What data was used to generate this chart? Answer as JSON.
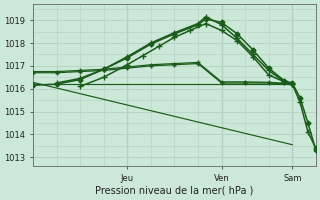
{
  "title": "",
  "xlabel": "Pression niveau de la mer( hPa )",
  "ylabel": "",
  "bg_color": "#cce8d8",
  "plot_bg_color": "#cce8d8",
  "grid_color": "#b8d4c4",
  "line_color": "#1a5c1a",
  "ylim": [
    1012.6,
    1019.7
  ],
  "xlim": [
    0,
    72
  ],
  "yticks": [
    1013,
    1014,
    1015,
    1016,
    1017,
    1018,
    1019
  ],
  "xtick_positions": [
    24,
    48,
    66
  ],
  "xtick_labels": [
    "Jeu",
    "Ven",
    "Sam"
  ],
  "vlines": [
    24,
    48,
    66
  ],
  "lines": [
    {
      "x": [
        0,
        6,
        12,
        18,
        24,
        30,
        36,
        42,
        44,
        48,
        52,
        56,
        60,
        64,
        66,
        68,
        70,
        72
      ],
      "y": [
        1016.15,
        1016.2,
        1016.4,
        1016.85,
        1017.35,
        1017.95,
        1018.4,
        1018.8,
        1019.05,
        1018.9,
        1018.4,
        1017.7,
        1016.9,
        1016.35,
        1016.25,
        1015.6,
        1014.5,
        1013.3
      ],
      "marker": "D",
      "ms": 2.5,
      "lw": 1.1
    },
    {
      "x": [
        6,
        12,
        18,
        24,
        30,
        36,
        42,
        44,
        48,
        52,
        56,
        60,
        64,
        66,
        68,
        70,
        72
      ],
      "y": [
        1016.25,
        1016.45,
        1016.85,
        1017.4,
        1018.0,
        1018.45,
        1018.85,
        1019.15,
        1018.8,
        1018.2,
        1017.5,
        1016.8,
        1016.3,
        1016.2,
        1015.4,
        1014.1,
        1013.4
      ],
      "marker": "+",
      "ms": 4,
      "lw": 1.1
    },
    {
      "x": [
        12,
        18,
        24,
        28,
        32,
        36,
        40,
        44,
        48,
        52,
        56,
        60,
        64,
        66
      ],
      "y": [
        1016.1,
        1016.5,
        1017.05,
        1017.45,
        1017.85,
        1018.25,
        1018.55,
        1018.85,
        1018.55,
        1018.1,
        1017.4,
        1016.6,
        1016.3,
        1016.2
      ],
      "marker": "+",
      "ms": 4,
      "lw": 1.1
    },
    {
      "x": [
        0,
        6,
        12,
        18,
        24,
        30,
        36,
        42,
        48,
        54,
        60,
        66
      ],
      "y": [
        1016.7,
        1016.7,
        1016.75,
        1016.8,
        1016.9,
        1017.0,
        1017.05,
        1017.1,
        1016.25,
        1016.25,
        1016.25,
        1016.2
      ],
      "marker": "+",
      "ms": 3,
      "lw": 0.9
    },
    {
      "x": [
        0,
        6,
        12,
        18,
        24,
        30,
        36,
        42,
        48,
        54,
        60,
        66
      ],
      "y": [
        1016.75,
        1016.75,
        1016.8,
        1016.85,
        1016.95,
        1017.05,
        1017.1,
        1017.15,
        1016.3,
        1016.3,
        1016.28,
        1016.22
      ],
      "marker": "+",
      "ms": 3,
      "lw": 0.9
    },
    {
      "x": [
        0,
        66
      ],
      "y": [
        1016.22,
        1016.22
      ],
      "marker": null,
      "ms": 0,
      "lw": 0.85
    },
    {
      "x": [
        0,
        66
      ],
      "y": [
        1016.28,
        1013.55
      ],
      "marker": null,
      "ms": 0,
      "lw": 0.85
    }
  ]
}
